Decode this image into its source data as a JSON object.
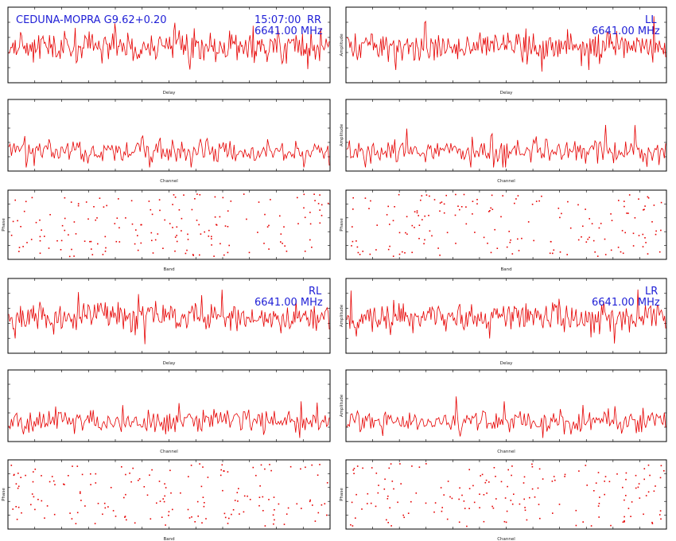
{
  "header": {
    "baseline": "CEDUNA-MOPRA",
    "source": "G9.62+0.20",
    "time": "15:07:00"
  },
  "colors": {
    "trace": "#e60000",
    "annotation": "#1f1fd6",
    "frame": "#000000"
  },
  "chart_data": [
    {
      "type": "line",
      "panel": "RR",
      "row": 0,
      "col": 0,
      "xlabel": "Delay",
      "ylabel": "",
      "polarization": "RR",
      "frequency": "6641.00 MHz"
    },
    {
      "type": "line",
      "panel": "RR",
      "row": 1,
      "col": 0,
      "xlabel": "Channel",
      "ylabel": "",
      "polarization": "",
      "frequency": ""
    },
    {
      "type": "scatter",
      "panel": "RR",
      "row": 2,
      "col": 0,
      "xlabel": "Band",
      "ylabel": "Phase",
      "polarization": "",
      "frequency": ""
    },
    {
      "type": "line",
      "panel": "LL",
      "row": 0,
      "col": 1,
      "xlabel": "Delay",
      "ylabel": "Amplitude",
      "polarization": "LL",
      "frequency": "6641.00 MHz"
    },
    {
      "type": "line",
      "panel": "LL",
      "row": 1,
      "col": 1,
      "xlabel": "Channel",
      "ylabel": "Amplitude",
      "polarization": "",
      "frequency": ""
    },
    {
      "type": "scatter",
      "panel": "LL",
      "row": 2,
      "col": 1,
      "xlabel": "Band",
      "ylabel": "Phase",
      "polarization": "",
      "frequency": ""
    },
    {
      "type": "line",
      "panel": "RL",
      "row": 3,
      "col": 0,
      "xlabel": "Delay",
      "ylabel": "",
      "polarization": "RL",
      "frequency": "6641.00 MHz"
    },
    {
      "type": "line",
      "panel": "RL",
      "row": 4,
      "col": 0,
      "xlabel": "Channel",
      "ylabel": "",
      "polarization": "",
      "frequency": ""
    },
    {
      "type": "scatter",
      "panel": "RL",
      "row": 5,
      "col": 0,
      "xlabel": "Band",
      "ylabel": "Phase",
      "polarization": "",
      "frequency": ""
    },
    {
      "type": "line",
      "panel": "LR",
      "row": 3,
      "col": 1,
      "xlabel": "Delay",
      "ylabel": "Amplitude",
      "polarization": "LR",
      "frequency": "6641.00 MHz"
    },
    {
      "type": "line",
      "panel": "LR",
      "row": 4,
      "col": 1,
      "xlabel": "Channel",
      "ylabel": "Amplitude",
      "polarization": "",
      "frequency": ""
    },
    {
      "type": "scatter",
      "panel": "LR",
      "row": 5,
      "col": 1,
      "xlabel": "Channel",
      "ylabel": "Phase",
      "polarization": "",
      "frequency": ""
    }
  ]
}
